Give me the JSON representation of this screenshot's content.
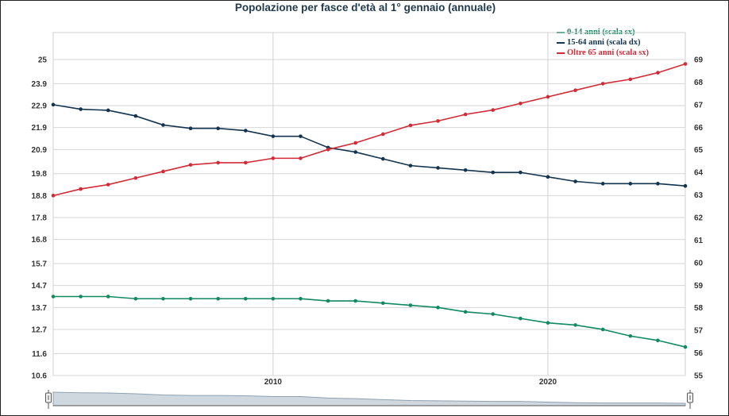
{
  "chart_data": {
    "type": "line",
    "title": "Popolazione per fasce d'età al 1° gennaio (annuale)",
    "x": [
      2002,
      2003,
      2004,
      2005,
      2006,
      2007,
      2008,
      2009,
      2010,
      2011,
      2012,
      2013,
      2014,
      2015,
      2016,
      2017,
      2018,
      2019,
      2020,
      2021,
      2022,
      2023,
      2024,
      2025
    ],
    "x_ticks": [
      "2010",
      "2020"
    ],
    "ylim_left": [
      10.6,
      26.0
    ],
    "ylim_right": [
      55,
      69.5
    ],
    "left_ticks": [
      "25",
      "23.9",
      "22.9",
      "21.9",
      "20.9",
      "19.8",
      "18.8",
      "17.8",
      "16.8",
      "15.7",
      "14.7",
      "13.7",
      "12.7",
      "11.6",
      "10.6"
    ],
    "right_ticks": [
      "69",
      "68",
      "67",
      "66",
      "65",
      "64",
      "63",
      "62",
      "61",
      "60",
      "59",
      "58",
      "57",
      "56",
      "55"
    ],
    "series": [
      {
        "name": "0-14 anni (scala sx)",
        "axis": "left",
        "color": "#118a5f",
        "values": [
          14.2,
          14.2,
          14.2,
          14.1,
          14.1,
          14.1,
          14.1,
          14.1,
          14.1,
          14.1,
          14.0,
          14.0,
          13.9,
          13.8,
          13.7,
          13.5,
          13.4,
          13.2,
          13.0,
          12.9,
          12.7,
          12.4,
          12.2,
          11.9
        ]
      },
      {
        "name": "15-64 anni (scala dx)",
        "axis": "right",
        "color": "#13344f",
        "values": [
          67.0,
          66.8,
          66.75,
          66.5,
          66.1,
          65.95,
          65.95,
          65.85,
          65.6,
          65.6,
          65.1,
          64.9,
          64.6,
          64.3,
          64.2,
          64.1,
          64.0,
          64.0,
          63.8,
          63.6,
          63.5,
          63.5,
          63.5,
          63.4
        ]
      },
      {
        "name": "Oltre 65 anni (scala sx)",
        "axis": "left",
        "color": "#d22b36",
        "values": [
          18.8,
          19.1,
          19.3,
          19.6,
          19.9,
          20.2,
          20.3,
          20.3,
          20.5,
          20.5,
          20.9,
          21.2,
          21.6,
          22.0,
          22.2,
          22.5,
          22.7,
          23.0,
          23.3,
          23.6,
          23.9,
          24.1,
          24.4,
          24.8
        ]
      }
    ],
    "legend": [
      {
        "label": "0-14 anni (scala sx)",
        "color": "#118a5f"
      },
      {
        "label": "15-64 anni (scala dx)",
        "color": "#13344f"
      },
      {
        "label": "Oltre 65 anni (scala sx)",
        "color": "#d22b36"
      }
    ],
    "legend_position": "top-right",
    "grid": true
  }
}
